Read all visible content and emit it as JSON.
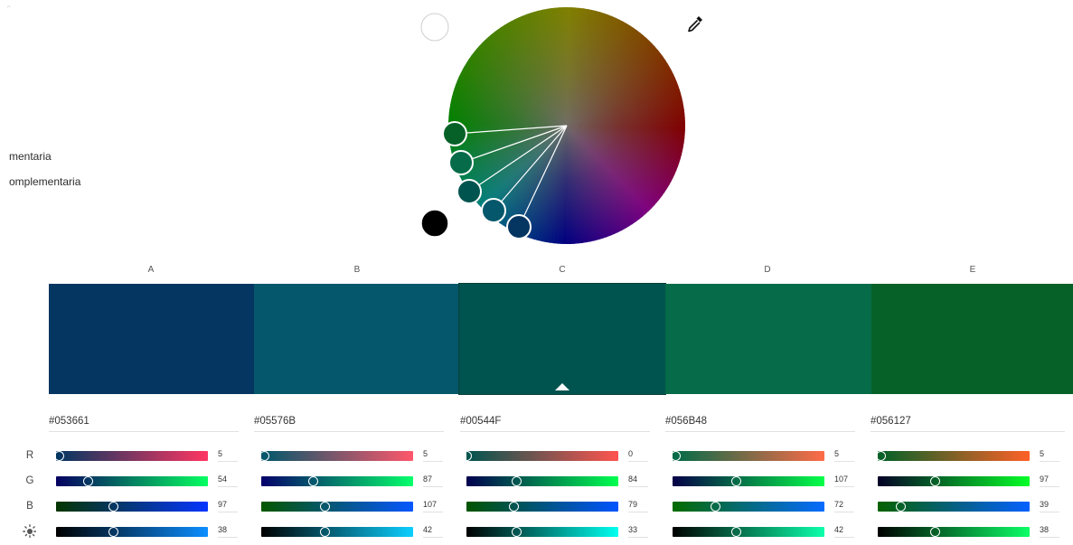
{
  "corner_glyph": "ᵔ",
  "rules": [
    {
      "label": "mentaria"
    },
    {
      "label": "omplementaria"
    }
  ],
  "wheel": {
    "picker_icon": "eyedropper-icon",
    "white_swatch_color": "#ffffff",
    "black_swatch_color": "#000000"
  },
  "active_column": "C",
  "swatches": [
    {
      "letter": "A",
      "hex": "#053661",
      "color": "#053661",
      "channels": {
        "R": 5,
        "G": 54,
        "B": 97,
        "Brightness": 38
      }
    },
    {
      "letter": "B",
      "hex": "#05576B",
      "color": "#05576B",
      "channels": {
        "R": 5,
        "G": 87,
        "B": 107,
        "Brightness": 42
      }
    },
    {
      "letter": "C",
      "hex": "#00544F",
      "color": "#00544F",
      "channels": {
        "R": 0,
        "G": 84,
        "B": 79,
        "Brightness": 33
      }
    },
    {
      "letter": "D",
      "hex": "#056B48",
      "color": "#056B48",
      "channels": {
        "R": 5,
        "G": 107,
        "B": 72,
        "Brightness": 42
      }
    },
    {
      "letter": "E",
      "hex": "#056127",
      "color": "#056127",
      "channels": {
        "R": 5,
        "G": 97,
        "B": 39,
        "Brightness": 38
      }
    }
  ],
  "row_labels": [
    "R",
    "G",
    "B"
  ],
  "brightness_icon": "sun-icon"
}
